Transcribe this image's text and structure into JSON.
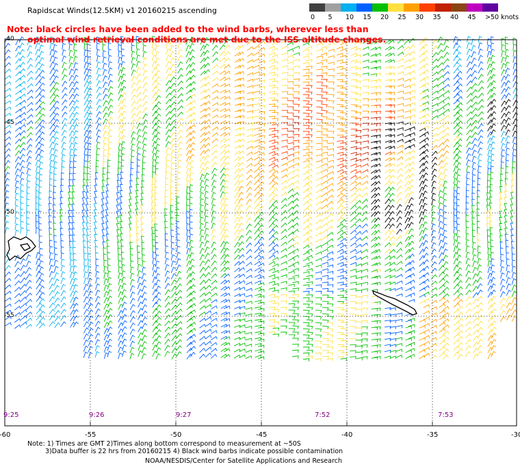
{
  "header": {
    "title": "Rapidscat Winds(12.5KM) v1 20160215 ascending",
    "note_line1": "Note: black circles have been added to the wind barbs, wherever less than",
    "note_line2": "optimal wind retrieval conditions are met due to the ISS altitude changes."
  },
  "colorbar": {
    "labels": [
      "0",
      "5",
      "10",
      "15",
      "20",
      "25",
      "30",
      "35",
      "40",
      "45",
      ">50 knots"
    ],
    "colors": [
      "#404040",
      "#a0a0a0",
      "#00b0f0",
      "#0060ff",
      "#00c000",
      "#ffe040",
      "#ffa000",
      "#ff4000",
      "#c02000",
      "#8b4513",
      "#c000c0",
      "#6000a0"
    ]
  },
  "axes": {
    "x_ticks": [
      "-60",
      "-55",
      "-50",
      "-45",
      "-40",
      "-35",
      "-30"
    ],
    "y_ticks": [
      "-40",
      "-45",
      "-50",
      "-55"
    ],
    "times": [
      "9:25",
      "9:26",
      "9:27",
      "7:52",
      "7:53"
    ]
  },
  "footer": {
    "line1": "Note: 1) Times are GMT 2)Times along bottom correspond to measurement at ~50S",
    "line2": "3)Data buffer is 22 hrs from 20160215 4) Black wind barbs indicate possible contamination",
    "line3": "NOAA/NESDIS/Center for Satellite Applications and Research"
  }
}
